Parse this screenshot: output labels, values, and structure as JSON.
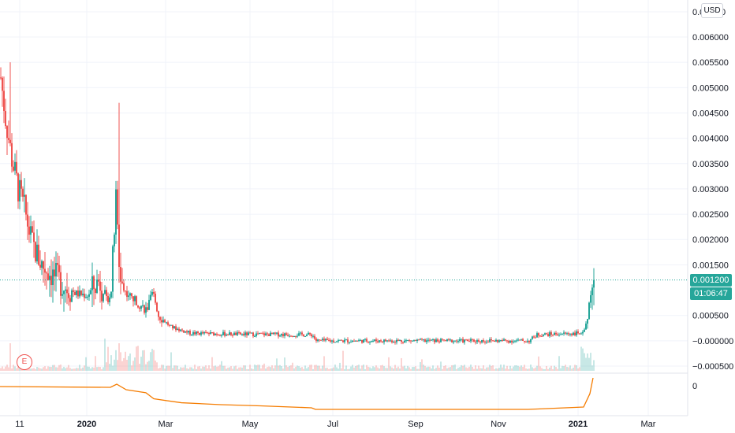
{
  "price_axis": {
    "currency": "USD",
    "ticks": [
      "0.006000",
      "0.005500",
      "0.005000",
      "0.004500",
      "0.004000",
      "0.003500",
      "0.003000",
      "0.002500",
      "0.002000",
      "0.001500",
      "0.000500",
      "−0.000000",
      "−0.000500"
    ],
    "top_partial_label": "0.0",
    "top_partial_suffix": "0"
  },
  "indicator_axis": {
    "tick": "0"
  },
  "time_axis": {
    "labels": [
      {
        "text": "11",
        "bold": false
      },
      {
        "text": "2020",
        "bold": true
      },
      {
        "text": "Mar",
        "bold": false
      },
      {
        "text": "May",
        "bold": false
      },
      {
        "text": "Jul",
        "bold": false
      },
      {
        "text": "Sep",
        "bold": false
      },
      {
        "text": "Nov",
        "bold": false
      },
      {
        "text": "2021",
        "bold": true
      },
      {
        "text": "Mar",
        "bold": false
      }
    ]
  },
  "last_price": {
    "value": "0.001200",
    "countdown": "01:06:47"
  },
  "earnings_marker": {
    "label": "E"
  },
  "colors": {
    "up": "#26a69a",
    "down": "#ef5350",
    "indicator": "#f57c00",
    "grid": "#f0f3fa",
    "separator": "#e0e3eb"
  },
  "chart_data": {
    "type": "candlestick",
    "y_range": [
      -0.0006,
      0.0063
    ],
    "x_labels": [
      "11",
      "2020",
      "Mar",
      "May",
      "Jul",
      "Sep",
      "Nov",
      "2021",
      "Mar"
    ],
    "anchors": [
      {
        "t": 0,
        "v": 0.0052
      },
      {
        "t": 6,
        "v": 0.0044
      },
      {
        "t": 14,
        "v": 0.0036
      },
      {
        "t": 22,
        "v": 0.003
      },
      {
        "t": 30,
        "v": 0.0026
      },
      {
        "t": 40,
        "v": 0.0019
      },
      {
        "t": 52,
        "v": 0.0015
      },
      {
        "t": 66,
        "v": 0.0013
      },
      {
        "t": 80,
        "v": 0.0011
      },
      {
        "t": 96,
        "v": 0.00093
      },
      {
        "t": 110,
        "v": 0.0009
      },
      {
        "t": 125,
        "v": 0.0012
      },
      {
        "t": 135,
        "v": 0.0008
      },
      {
        "t": 140,
        "v": 0.001
      },
      {
        "t": 146,
        "v": 0.0028
      },
      {
        "t": 150,
        "v": 0.0015
      },
      {
        "t": 156,
        "v": 0.001
      },
      {
        "t": 170,
        "v": 0.0008
      },
      {
        "t": 185,
        "v": 0.0006
      },
      {
        "t": 193,
        "v": 0.00095
      },
      {
        "t": 200,
        "v": 0.0005
      },
      {
        "t": 215,
        "v": 0.00028
      },
      {
        "t": 240,
        "v": 0.00015
      },
      {
        "t": 300,
        "v": 0.00013
      },
      {
        "t": 395,
        "v": 0.00012
      },
      {
        "t": 400,
        "v": 0.0
      },
      {
        "t": 520,
        "v": 0.0
      },
      {
        "t": 600,
        "v": 0.0
      },
      {
        "t": 670,
        "v": 0.0
      },
      {
        "t": 680,
        "v": 0.00012
      },
      {
        "t": 735,
        "v": 0.00015
      },
      {
        "t": 742,
        "v": 0.0003
      },
      {
        "t": 748,
        "v": 0.0009
      },
      {
        "t": 752,
        "v": 0.0012
      }
    ],
    "spikes": [
      {
        "t": 150,
        "high": 0.0047
      },
      {
        "t": 751,
        "high": 0.002
      },
      {
        "t": 5,
        "high": 0.006
      },
      {
        "t": 12,
        "high": 0.0055
      }
    ],
    "last": 0.0012
  }
}
